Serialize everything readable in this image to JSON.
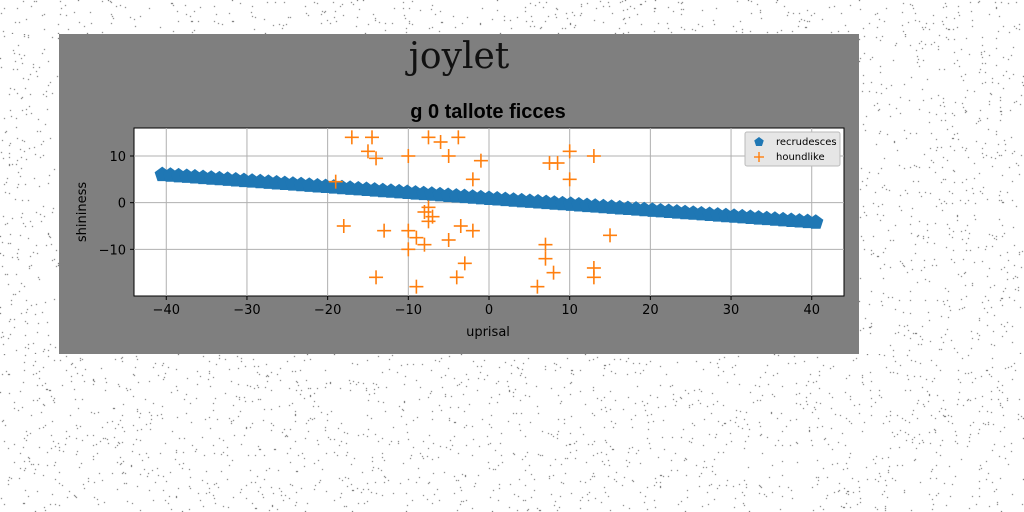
{
  "figure": {
    "suptitle": "joylet"
  },
  "chart_data": {
    "type": "scatter",
    "title": "g 0 tallote ficces",
    "xlabel": "uprisal",
    "ylabel": "shininess",
    "xlim": [
      -44,
      44
    ],
    "ylim": [
      -20,
      16
    ],
    "xticks": [
      -40,
      -30,
      -20,
      -10,
      0,
      10,
      20,
      30,
      40
    ],
    "yticks": [
      -10,
      0,
      10
    ],
    "grid": true,
    "legend_position": "top-right",
    "series": [
      {
        "name": "recrudesces",
        "marker": "pentagon",
        "color": "#1f77b4",
        "line": {
          "x_start": -40.5,
          "y_start": 6.0,
          "x_end": 40.5,
          "y_end": -4.2,
          "count": 81
        }
      },
      {
        "name": "houndlike",
        "marker": "plus",
        "color": "#ff7f0e",
        "points": [
          [
            -17,
            14
          ],
          [
            -14.5,
            14
          ],
          [
            -7.5,
            14
          ],
          [
            -3.8,
            14
          ],
          [
            -6,
            13
          ],
          [
            -15,
            11
          ],
          [
            -14,
            9.5
          ],
          [
            -10,
            10
          ],
          [
            -5,
            10
          ],
          [
            -1,
            9
          ],
          [
            10,
            11
          ],
          [
            13,
            10
          ],
          [
            7.5,
            8.5
          ],
          [
            8.5,
            8.5
          ],
          [
            10,
            5
          ],
          [
            -2,
            5
          ],
          [
            -19,
            4.5
          ],
          [
            -7.5,
            -1
          ],
          [
            -8,
            -2
          ],
          [
            -7,
            -3
          ],
          [
            -7.5,
            -4
          ],
          [
            -3.5,
            -5
          ],
          [
            -18,
            -5
          ],
          [
            -13,
            -6
          ],
          [
            -10,
            -6
          ],
          [
            -9,
            -7.5
          ],
          [
            -2,
            -6
          ],
          [
            -8,
            -9
          ],
          [
            -5,
            -8
          ],
          [
            -10,
            -10
          ],
          [
            7,
            -9
          ],
          [
            7,
            -12
          ],
          [
            15,
            -7
          ],
          [
            -3,
            -13
          ],
          [
            8,
            -15
          ],
          [
            13,
            -14
          ],
          [
            13,
            -16
          ],
          [
            -14,
            -16
          ],
          [
            -4,
            -16
          ],
          [
            -9,
            -18
          ],
          [
            6,
            -18
          ]
        ]
      }
    ]
  }
}
